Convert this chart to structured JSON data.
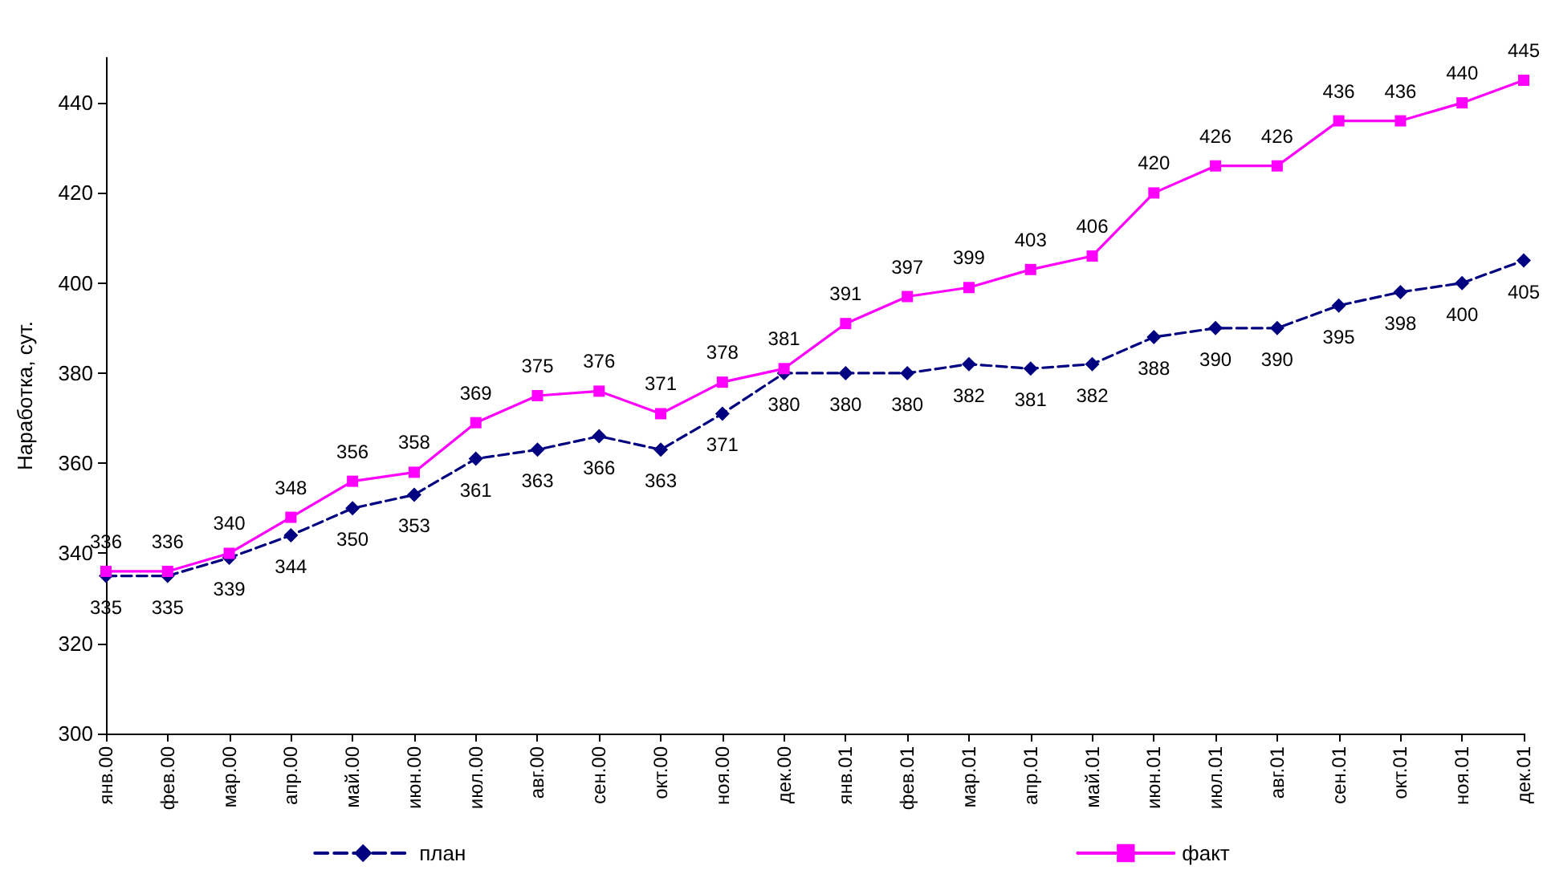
{
  "chart_data": {
    "type": "line",
    "ylabel": "Наработка, сут.",
    "categories": [
      "янв.00",
      "фев.00",
      "мар.00",
      "апр.00",
      "май.00",
      "июн.00",
      "июл.00",
      "авг.00",
      "сен.00",
      "окт.00",
      "ноя.00",
      "дек.00",
      "янв.01",
      "фев.01",
      "мар.01",
      "апр.01",
      "май.01",
      "июн.01",
      "июл.01",
      "авг.01",
      "сен.01",
      "окт.01",
      "ноя.01",
      "дек.01"
    ],
    "series": [
      {
        "name": "план",
        "color": "#000080",
        "marker": "diamond",
        "line_style": "dashed",
        "values": [
          335,
          335,
          339,
          344,
          350,
          353,
          361,
          363,
          366,
          363,
          371,
          380,
          380,
          380,
          382,
          381,
          382,
          388,
          390,
          390,
          395,
          398,
          400,
          405
        ]
      },
      {
        "name": "факт",
        "color": "#ff00ff",
        "marker": "square",
        "line_style": "solid",
        "values": [
          336,
          336,
          340,
          348,
          356,
          358,
          369,
          375,
          376,
          371,
          378,
          381,
          391,
          397,
          399,
          403,
          406,
          420,
          426,
          426,
          436,
          436,
          440,
          445
        ]
      }
    ],
    "ylim": [
      300,
      450
    ],
    "yticks": [
      300,
      320,
      340,
      360,
      380,
      400,
      420,
      440
    ],
    "grid": false,
    "legend": "bottom",
    "data_labels": true
  }
}
